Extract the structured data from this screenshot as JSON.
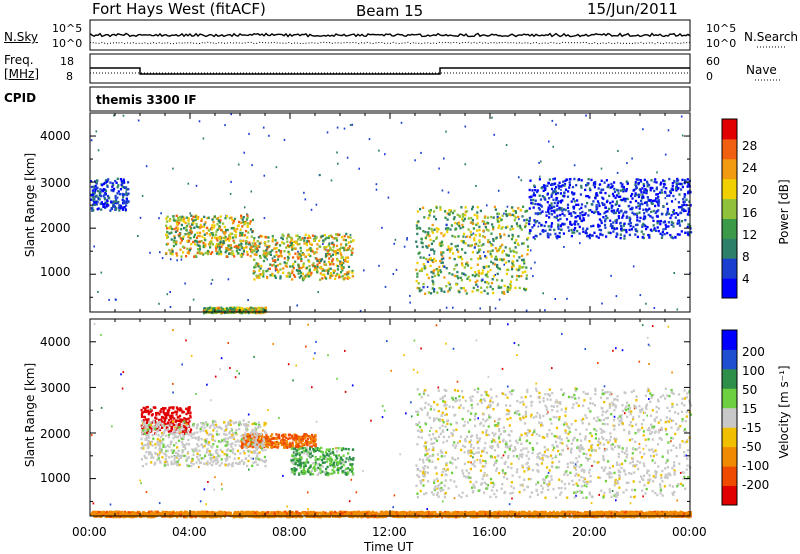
{
  "header": {
    "title": "Fort Hays West (fitACF)",
    "beam": "Beam 15",
    "date": "15/Jun/2011"
  },
  "top_panels": {
    "nsky_label": "N.Sky",
    "nsky_ticks": [
      "10^5",
      "10^0"
    ],
    "nsearch_label": "N.Search",
    "nsearch_ticks": [
      "10^5",
      "10^0"
    ],
    "freq_label": "Freq.",
    "freq_unit": "[MHz]",
    "freq_ticks": [
      "18",
      "8"
    ],
    "nave_label": "Nave",
    "nave_ticks": [
      "60",
      "0"
    ],
    "cpid_label": "CPID",
    "cpid_text": "themis 3300 IF"
  },
  "colorbars": {
    "power": {
      "label": "Power [dB]",
      "ticks": [
        "28",
        "24",
        "20",
        "16",
        "12",
        "8",
        "4"
      ],
      "colors": [
        "#0000ff",
        "#1a3fd0",
        "#2e7f6a",
        "#3a9a48",
        "#8fc23a",
        "#f0d000",
        "#f29a10",
        "#f06010",
        "#e00000"
      ]
    },
    "velocity": {
      "label": "Velocity [m s⁻¹]",
      "ticks": [
        "200",
        "100",
        "50",
        "15",
        "-15",
        "-50",
        "-100",
        "-200"
      ],
      "colors": [
        "#0000ff",
        "#1f4fd0",
        "#2e8f4a",
        "#6cd040",
        "#c8c8c8",
        "#f0c000",
        "#f08a00",
        "#f04a00",
        "#e00000"
      ]
    }
  },
  "axes": {
    "ylabel": "Slant Range [km]",
    "xlabel": "Time UT",
    "yticks": [
      "4000",
      "3000",
      "2000",
      "1000"
    ],
    "xticks": [
      "00:00",
      "04:00",
      "08:00",
      "12:00",
      "16:00",
      "20:00",
      "00:00"
    ]
  },
  "chart_data": {
    "type": "heatmap",
    "x_range_hours": [
      0,
      24
    ],
    "y_range_km": [
      180,
      4500
    ],
    "freq_series_mhz": [
      {
        "from": "00:00",
        "to": "02:00",
        "value": 13
      },
      {
        "from": "02:00",
        "to": "14:00",
        "value": 10.5
      },
      {
        "from": "14:00",
        "to": "24:00",
        "value": 13
      }
    ],
    "power_echo_regions": [
      {
        "t": [
          "03:00",
          "06:30"
        ],
        "range_km": [
          1400,
          2300
        ],
        "peak_db": 26
      },
      {
        "t": [
          "06:30",
          "10:30"
        ],
        "range_km": [
          900,
          1900
        ],
        "peak_db": 26
      },
      {
        "t": [
          "04:30",
          "07:00"
        ],
        "range_km": [
          180,
          300
        ],
        "peak_db": 24
      },
      {
        "t": [
          "13:00",
          "17:30"
        ],
        "range_km": [
          600,
          2500
        ],
        "peak_db": 22
      },
      {
        "t": [
          "00:00",
          "01:30"
        ],
        "range_km": [
          2400,
          3100
        ],
        "peak_db": 10
      },
      {
        "t": [
          "17:30",
          "24:00"
        ],
        "range_km": [
          1800,
          3100
        ],
        "peak_db": 9
      }
    ],
    "velocity_echo_regions": [
      {
        "t": [
          "02:00",
          "04:00"
        ],
        "range_km": [
          2000,
          2600
        ],
        "velocity_ms": -200
      },
      {
        "t": [
          "06:00",
          "09:00"
        ],
        "range_km": [
          1700,
          2000
        ],
        "velocity_ms": -80
      },
      {
        "t": [
          "08:00",
          "10:30"
        ],
        "range_km": [
          1100,
          1700
        ],
        "velocity_ms": 30
      },
      {
        "t": [
          "02:00",
          "07:00"
        ],
        "range_km": [
          1300,
          2300
        ],
        "velocity_ms": 0
      },
      {
        "t": [
          "00:00",
          "24:00"
        ],
        "range_km": [
          180,
          300
        ],
        "velocity_ms": -60
      },
      {
        "t": [
          "13:00",
          "24:00"
        ],
        "range_km": [
          600,
          3000
        ],
        "velocity_ms": 0
      }
    ]
  }
}
